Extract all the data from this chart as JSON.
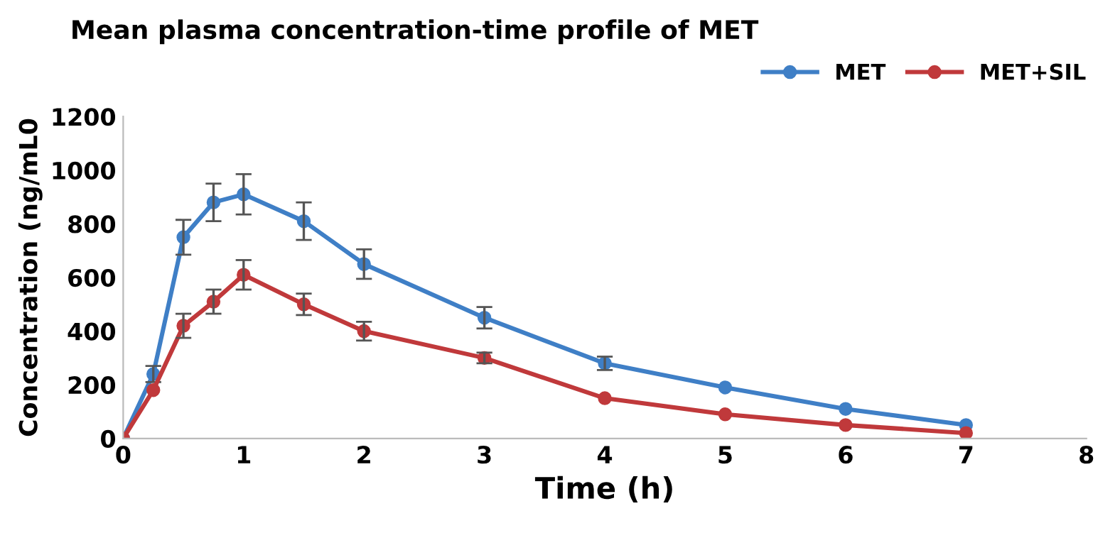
{
  "chart_data": {
    "type": "line",
    "title": "Mean plasma concentration-time profile of MET",
    "xlabel": "Time (h)",
    "ylabel": "Concentration (ng/mL0",
    "x": [
      0,
      0.25,
      0.5,
      0.75,
      1,
      1.5,
      2,
      3,
      4,
      5,
      6,
      7
    ],
    "series": [
      {
        "name": "MET",
        "color": "#3f7fc6",
        "values": [
          0,
          240,
          750,
          880,
          910,
          810,
          650,
          450,
          280,
          190,
          110,
          50
        ],
        "errors": [
          null,
          30,
          65,
          70,
          75,
          70,
          55,
          40,
          25,
          null,
          null,
          null
        ]
      },
      {
        "name": "MET+SIL",
        "color": "#c0393b",
        "values": [
          0,
          180,
          420,
          510,
          610,
          500,
          400,
          300,
          150,
          90,
          50,
          20
        ],
        "errors": [
          null,
          null,
          45,
          45,
          55,
          40,
          35,
          20,
          null,
          null,
          null,
          null
        ]
      }
    ],
    "xlim": [
      0,
      8
    ],
    "xticks": [
      0,
      1,
      2,
      3,
      4,
      5,
      6,
      7,
      8
    ],
    "ylim": [
      0,
      1200
    ],
    "yticks": [
      0,
      200,
      400,
      600,
      800,
      1000,
      1200
    ],
    "grid": false,
    "legend": "top right",
    "marker": "circle",
    "line_style": "solid"
  }
}
